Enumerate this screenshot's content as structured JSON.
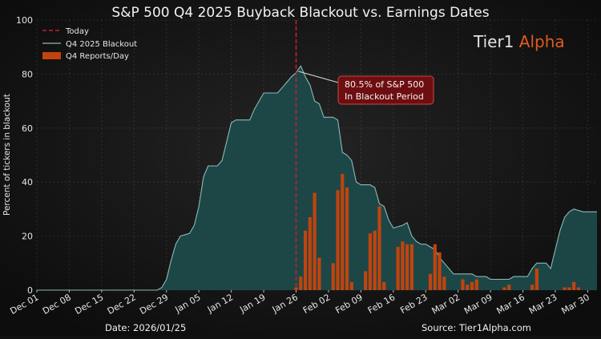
{
  "chart_data": {
    "type": "area",
    "title": "S&P 500 Q4 2025 Buyback Blackout vs. Earnings Dates",
    "ylabel": "Percent of tickers in blackout",
    "xlabel": "",
    "ylim": [
      0,
      100
    ],
    "y_ticks": [
      "0",
      "20",
      "40",
      "60",
      "80",
      "100"
    ],
    "x_range": [
      "2025-12-01",
      "2026-04-01"
    ],
    "x_ticks": [
      {
        "date": "2025-12-01",
        "label": "Dec 01"
      },
      {
        "date": "2025-12-08",
        "label": "Dec 08"
      },
      {
        "date": "2025-12-15",
        "label": "Dec 15"
      },
      {
        "date": "2025-12-22",
        "label": "Dec 22"
      },
      {
        "date": "2025-12-29",
        "label": "Dec 29"
      },
      {
        "date": "2026-01-05",
        "label": "Jan 05"
      },
      {
        "date": "2026-01-12",
        "label": "Jan 12"
      },
      {
        "date": "2026-01-19",
        "label": "Jan 19"
      },
      {
        "date": "2026-01-26",
        "label": "Jan 26"
      },
      {
        "date": "2026-02-02",
        "label": "Feb 02"
      },
      {
        "date": "2026-02-09",
        "label": "Feb 09"
      },
      {
        "date": "2026-02-16",
        "label": "Feb 16"
      },
      {
        "date": "2026-02-23",
        "label": "Feb 23"
      },
      {
        "date": "2026-03-02",
        "label": "Mar 02"
      },
      {
        "date": "2026-03-09",
        "label": "Mar 09"
      },
      {
        "date": "2026-03-16",
        "label": "Mar 16"
      },
      {
        "date": "2026-03-23",
        "label": "Mar 23"
      },
      {
        "date": "2026-03-30",
        "label": "Mar 30"
      }
    ],
    "grid": true,
    "legend_position": "top-left",
    "legend": [
      {
        "label": "Today",
        "kind": "dashed-line"
      },
      {
        "label": "Q4 2025 Blackout",
        "kind": "line"
      },
      {
        "label": "Q4 Reports/Day",
        "kind": "bar"
      }
    ],
    "colors": {
      "blackout_fill": "#1d4a4a",
      "blackout_line": "#8fb8b8",
      "bars": "#c1440e",
      "today": "#c81e28",
      "callout_bg": "#6e0e10",
      "accent": "#e05a1f"
    },
    "today": "2026-01-26",
    "series": [
      {
        "name": "Q4 2025 Blackout",
        "type": "area",
        "points": [
          [
            "2025-12-01",
            0
          ],
          [
            "2025-12-27",
            0
          ],
          [
            "2025-12-28",
            1
          ],
          [
            "2025-12-29",
            4
          ],
          [
            "2025-12-30",
            11
          ],
          [
            "2025-12-31",
            17
          ],
          [
            "2026-01-01",
            20
          ],
          [
            "2026-01-03",
            21
          ],
          [
            "2026-01-04",
            24
          ],
          [
            "2026-01-05",
            31
          ],
          [
            "2026-01-06",
            42
          ],
          [
            "2026-01-07",
            46
          ],
          [
            "2026-01-09",
            46
          ],
          [
            "2026-01-10",
            48
          ],
          [
            "2026-01-11",
            55
          ],
          [
            "2026-01-12",
            62
          ],
          [
            "2026-01-13",
            63
          ],
          [
            "2026-01-16",
            63
          ],
          [
            "2026-01-17",
            67
          ],
          [
            "2026-01-18",
            70
          ],
          [
            "2026-01-19",
            73
          ],
          [
            "2026-01-22",
            73
          ],
          [
            "2026-01-23",
            75
          ],
          [
            "2026-01-24",
            77
          ],
          [
            "2026-01-25",
            79
          ],
          [
            "2026-01-26",
            80.5
          ],
          [
            "2026-01-27",
            83
          ],
          [
            "2026-01-28",
            79
          ],
          [
            "2026-01-29",
            76
          ],
          [
            "2026-01-30",
            70
          ],
          [
            "2026-01-31",
            69
          ],
          [
            "2026-02-01",
            64
          ],
          [
            "2026-02-02",
            64
          ],
          [
            "2026-02-03",
            64
          ],
          [
            "2026-02-04",
            63
          ],
          [
            "2026-02-05",
            51
          ],
          [
            "2026-02-06",
            50
          ],
          [
            "2026-02-07",
            48
          ],
          [
            "2026-02-08",
            40
          ],
          [
            "2026-02-09",
            39
          ],
          [
            "2026-02-11",
            39
          ],
          [
            "2026-02-12",
            38
          ],
          [
            "2026-02-13",
            32
          ],
          [
            "2026-02-14",
            31
          ],
          [
            "2026-02-15",
            26
          ],
          [
            "2026-02-16",
            23
          ],
          [
            "2026-02-18",
            24
          ],
          [
            "2026-02-19",
            25
          ],
          [
            "2026-02-20",
            20
          ],
          [
            "2026-02-21",
            18
          ],
          [
            "2026-02-22",
            17
          ],
          [
            "2026-02-23",
            17
          ],
          [
            "2026-02-24",
            16
          ],
          [
            "2026-02-25",
            15
          ],
          [
            "2026-02-26",
            12
          ],
          [
            "2026-02-27",
            10
          ],
          [
            "2026-02-28",
            8
          ],
          [
            "2026-03-01",
            6
          ],
          [
            "2026-03-02",
            6
          ],
          [
            "2026-03-05",
            6
          ],
          [
            "2026-03-06",
            5
          ],
          [
            "2026-03-08",
            5
          ],
          [
            "2026-03-09",
            4
          ],
          [
            "2026-03-13",
            4
          ],
          [
            "2026-03-14",
            5
          ],
          [
            "2026-03-17",
            5
          ],
          [
            "2026-03-18",
            8
          ],
          [
            "2026-03-19",
            10
          ],
          [
            "2026-03-21",
            10
          ],
          [
            "2026-03-22",
            8
          ],
          [
            "2026-03-23",
            15
          ],
          [
            "2026-03-24",
            22
          ],
          [
            "2026-03-25",
            27
          ],
          [
            "2026-03-26",
            29
          ],
          [
            "2026-03-27",
            30
          ],
          [
            "2026-03-29",
            29
          ],
          [
            "2026-04-01",
            29
          ]
        ]
      },
      {
        "name": "Q4 Reports/Day",
        "type": "bar",
        "points": [
          [
            "2026-01-26",
            1
          ],
          [
            "2026-01-27",
            5
          ],
          [
            "2026-01-28",
            22
          ],
          [
            "2026-01-29",
            27
          ],
          [
            "2026-01-30",
            36
          ],
          [
            "2026-01-31",
            12
          ],
          [
            "2026-02-03",
            10
          ],
          [
            "2026-02-04",
            37
          ],
          [
            "2026-02-05",
            43
          ],
          [
            "2026-02-06",
            38
          ],
          [
            "2026-02-07",
            3
          ],
          [
            "2026-02-10",
            7
          ],
          [
            "2026-02-11",
            21
          ],
          [
            "2026-02-12",
            22
          ],
          [
            "2026-02-13",
            31
          ],
          [
            "2026-02-14",
            3
          ],
          [
            "2026-02-17",
            16
          ],
          [
            "2026-02-18",
            18
          ],
          [
            "2026-02-19",
            17
          ],
          [
            "2026-02-20",
            17
          ],
          [
            "2026-02-24",
            6
          ],
          [
            "2026-02-25",
            17
          ],
          [
            "2026-02-26",
            14
          ],
          [
            "2026-02-27",
            5
          ],
          [
            "2026-03-03",
            4
          ],
          [
            "2026-03-04",
            2
          ],
          [
            "2026-03-05",
            3
          ],
          [
            "2026-03-06",
            4
          ],
          [
            "2026-03-12",
            1
          ],
          [
            "2026-03-13",
            2
          ],
          [
            "2026-03-18",
            2
          ],
          [
            "2026-03-19",
            8
          ],
          [
            "2026-03-25",
            1
          ],
          [
            "2026-03-26",
            1
          ],
          [
            "2026-03-27",
            3
          ],
          [
            "2026-03-28",
            1
          ]
        ]
      }
    ],
    "annotation": {
      "lines": [
        "80.5% of S&P 500",
        "In Blackout Period"
      ],
      "target": [
        "2026-01-26",
        81
      ]
    }
  },
  "brand": {
    "part1": "Tier1",
    "part2": " Alpha"
  },
  "footer": {
    "date": "Date: 2026/01/25",
    "source": "Source: Tier1Alpha.com"
  }
}
